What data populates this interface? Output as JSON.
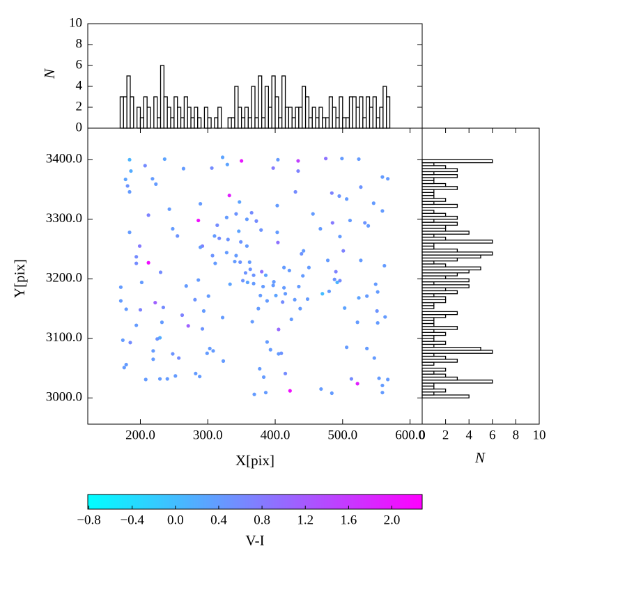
{
  "chart_data": [
    {
      "type": "scatter",
      "xlabel": "X[pix]",
      "ylabel": "Y[pix]",
      "x": [
        184,
        236,
        322,
        350,
        404,
        434,
        475,
        499,
        524,
        207,
        186,
        264,
        306,
        329,
        397,
        434,
        178,
        218,
        559,
        567,
        181,
        223,
        184,
        332,
        430,
        484,
        495,
        506,
        527,
        243,
        289,
        347,
        212,
        365,
        342,
        403,
        456,
        546,
        559,
        286,
        328,
        358,
        372,
        485,
        511,
        533,
        538,
        248,
        314,
        379,
        467,
        184,
        255,
        310,
        346,
        403,
        317,
        330,
        404,
        496,
        292,
        289,
        349,
        358,
        199,
        442,
        439,
        328,
        501,
        342,
        194,
        307,
        212,
        194,
        311,
        340,
        348,
        362,
        478,
        527,
        562,
        230,
        380,
        413,
        421,
        450,
        363,
        356,
        490,
        441,
        386,
        368,
        352,
        359,
        398,
        488,
        492,
        496,
        202,
        286,
        171,
        268,
        333,
        368,
        382,
        397,
        413,
        435,
        549,
        470,
        480,
        552,
        378,
        401,
        415,
        301,
        524,
        536,
        171,
        281,
        388,
        411,
        429,
        448,
        234,
        179,
        200,
        294,
        375,
        437,
        503,
        551,
        262,
        222,
        322,
        424,
        563,
        232,
        366,
        522,
        552,
        194,
        271,
        292,
        405,
        174,
        229,
        225,
        185,
        388,
        506,
        303,
        308,
        393,
        219,
        536,
        299,
        248,
        405,
        409,
        547,
        257,
        219,
        323,
        179,
        176,
        377,
        282,
        288,
        252,
        415,
        383,
        229,
        240,
        208,
        513,
        554,
        567,
        522,
        559,
        468,
        422,
        386,
        369,
        484,
        559
      ],
      "y": [
        3400,
        3401,
        3404,
        3398,
        3400,
        3398,
        3402,
        3402,
        3401,
        3390,
        3381,
        3385,
        3386,
        3392,
        3386,
        3381,
        3367,
        3368,
        3371,
        3368,
        3356,
        3359,
        3346,
        3340,
        3346,
        3344,
        3339,
        3334,
        3354,
        3317,
        3326,
        3329,
        3307,
        3311,
        3309,
        3323,
        3309,
        3327,
        3314,
        3298,
        3303,
        3300,
        3297,
        3294,
        3298,
        3294,
        3289,
        3284,
        3290,
        3282,
        3284,
        3278,
        3272,
        3272,
        3280,
        3278,
        3268,
        3266,
        3261,
        3271,
        3255,
        3253,
        3262,
        3255,
        3255,
        3247,
        3242,
        3244,
        3247,
        3239,
        3237,
        3239,
        3227,
        3226,
        3226,
        3229,
        3228,
        3228,
        3231,
        3231,
        3222,
        3211,
        3212,
        3219,
        3214,
        3219,
        3216,
        3210,
        3212,
        3205,
        3206,
        3206,
        3197,
        3194,
        3195,
        3199,
        3194,
        3197,
        3194,
        3198,
        3186,
        3188,
        3191,
        3192,
        3187,
        3189,
        3185,
        3187,
        3191,
        3175,
        3179,
        3178,
        3172,
        3172,
        3175,
        3171,
        3168,
        3171,
        3163,
        3165,
        3163,
        3161,
        3165,
        3166,
        3152,
        3149,
        3148,
        3146,
        3150,
        3150,
        3151,
        3146,
        3139,
        3160,
        3135,
        3132,
        3136,
        3127,
        3128,
        3127,
        3126,
        3122,
        3121,
        3116,
        3115,
        3097,
        3101,
        3099,
        3093,
        3094,
        3085,
        3083,
        3079,
        3081,
        3079,
        3083,
        3075,
        3074,
        3074,
        3075,
        3067,
        3067,
        3065,
        3062,
        3056,
        3051,
        3049,
        3041,
        3036,
        3037,
        3041,
        3035,
        3032,
        3032,
        3031,
        3032,
        3033,
        3031,
        3024,
        3021,
        3015,
        3012,
        3009,
        3006,
        3008,
        3009
      ],
      "c": [
        0.1,
        0.3,
        0.3,
        2.0,
        0.4,
        1.5,
        0.9,
        0.4,
        0.4,
        0.6,
        0.2,
        0.4,
        0.6,
        0.3,
        0.8,
        0.7,
        0.3,
        0.4,
        0.4,
        0.4,
        0.5,
        0.4,
        0.4,
        1.9,
        0.6,
        0.7,
        0.5,
        0.4,
        0.5,
        0.4,
        0.4,
        0.3,
        0.7,
        0.6,
        0.5,
        0.4,
        0.4,
        0.4,
        0.4,
        2.1,
        0.4,
        0.4,
        0.6,
        0.8,
        0.4,
        0.5,
        0.4,
        0.4,
        0.6,
        0.5,
        0.4,
        0.4,
        0.5,
        0.4,
        0.3,
        0.4,
        0.6,
        0.5,
        0.9,
        0.4,
        0.7,
        0.4,
        0.5,
        0.4,
        0.8,
        0.4,
        0.5,
        0.4,
        0.7,
        0.4,
        0.6,
        0.5,
        2.1,
        0.6,
        0.4,
        0.4,
        0.5,
        0.4,
        0.4,
        0.4,
        0.4,
        0.6,
        0.9,
        0.4,
        0.4,
        0.4,
        0.5,
        0.5,
        0.7,
        0.4,
        0.3,
        0.5,
        0.5,
        0.3,
        0.4,
        0.5,
        0.1,
        0.6,
        0.4,
        0.4,
        0.4,
        0.4,
        0.3,
        0.4,
        0.4,
        0.4,
        0.4,
        0.4,
        0.4,
        0.0,
        0.4,
        0.4,
        0.4,
        0.3,
        0.4,
        0.4,
        0.3,
        0.4,
        0.4,
        0.5,
        0.4,
        0.6,
        0.4,
        0.4,
        0.6,
        0.4,
        0.7,
        0.4,
        0.4,
        0.4,
        0.3,
        0.5,
        0.7,
        1.1,
        0.4,
        0.4,
        0.4,
        0.4,
        0.4,
        0.4,
        0.4,
        0.4,
        1.1,
        0.5,
        1.0,
        0.4,
        0.2,
        0.5,
        0.6,
        0.4,
        0.4,
        0.4,
        0.4,
        0.4,
        0.4,
        0.4,
        0.4,
        0.5,
        0.4,
        0.5,
        0.4,
        0.6,
        0.4,
        0.4,
        0.4,
        0.4,
        0.4,
        0.4,
        0.4,
        0.4,
        0.6,
        0.4,
        0.4,
        0.4,
        0.4,
        0.6,
        0.4,
        0.4,
        1.9,
        0.4,
        0.4,
        2.1,
        0.4,
        0.4,
        0.4,
        0.4
      ],
      "xlim": [
        122,
        618
      ],
      "ylim": [
        2956,
        3453
      ],
      "xticks": [
        {
          "value": 200,
          "label": "200.0"
        },
        {
          "value": 300,
          "label": "300.0"
        },
        {
          "value": 400,
          "label": "400.0"
        },
        {
          "value": 500,
          "label": "500.0"
        },
        {
          "value": 600,
          "label": "600.0"
        }
      ],
      "yticks": [
        {
          "value": 3000,
          "label": "3000.0"
        },
        {
          "value": 3100,
          "label": "3100.0"
        },
        {
          "value": 3200,
          "label": "3200.0"
        },
        {
          "value": 3300,
          "label": "3300.0"
        },
        {
          "value": 3400,
          "label": "3400.0"
        }
      ],
      "colorbar": {
        "label": "V-I",
        "colormap": [
          "#00ffff",
          "#ff00ff"
        ],
        "clim": [
          -0.81,
          2.28
        ],
        "ticks": [
          {
            "value": -0.8,
            "label": "−0.8"
          },
          {
            "value": -0.4,
            "label": "−0.4"
          },
          {
            "value": 0,
            "label": "0.0"
          },
          0.4,
          0.8,
          1.2,
          1.6,
          {
            "value": 2,
            "label": "2.0"
          }
        ]
      }
    },
    {
      "type": "histogram",
      "orientation": "vertical",
      "ylabel": "N",
      "color": "#000000",
      "bins": [
        170,
        175,
        180,
        185,
        190,
        195,
        200,
        205,
        210,
        215,
        220,
        225,
        230,
        235,
        240,
        245,
        250,
        255,
        260,
        265,
        270,
        275,
        280,
        285,
        290,
        295,
        300,
        305,
        310,
        315,
        320,
        325,
        330,
        335,
        340,
        345,
        350,
        355,
        360,
        365,
        370,
        375,
        380,
        385,
        390,
        395,
        400,
        405,
        410,
        415,
        420,
        425,
        430,
        435,
        440,
        445,
        450,
        455,
        460,
        465,
        470,
        475,
        480,
        485,
        490,
        495,
        500,
        505,
        510,
        515,
        520,
        525,
        530,
        535,
        540,
        545,
        550,
        555,
        560,
        565,
        570
      ],
      "counts": [
        3,
        3,
        5,
        3,
        0,
        2,
        1,
        3,
        2,
        0,
        3,
        1,
        6,
        3,
        2,
        1,
        3,
        2,
        1,
        3,
        2,
        1,
        2,
        1,
        0,
        2,
        1,
        0,
        1,
        2,
        0,
        0,
        1,
        1,
        4,
        2,
        1,
        2,
        1,
        4,
        1,
        5,
        1,
        4,
        2,
        5,
        3,
        1,
        5,
        2,
        2,
        1,
        2,
        2,
        4,
        3,
        1,
        2,
        1,
        2,
        1,
        1,
        3,
        2,
        1,
        3,
        1,
        1,
        3,
        3,
        2,
        3,
        1,
        3,
        2,
        3,
        1,
        2,
        4,
        3
      ],
      "xlim": [
        122,
        618
      ],
      "ylim": [
        0,
        10
      ],
      "yticks": [
        0,
        2,
        4,
        6,
        8,
        10
      ]
    },
    {
      "type": "histogram",
      "orientation": "horizontal",
      "xlabel": "N",
      "color": "#000000",
      "bins": [
        3000,
        3005,
        3010,
        3015,
        3020,
        3025,
        3030,
        3035,
        3040,
        3045,
        3050,
        3055,
        3060,
        3065,
        3070,
        3075,
        3080,
        3085,
        3090,
        3095,
        3100,
        3105,
        3110,
        3115,
        3120,
        3125,
        3130,
        3135,
        3140,
        3145,
        3150,
        3155,
        3160,
        3165,
        3170,
        3175,
        3180,
        3185,
        3190,
        3195,
        3200,
        3205,
        3210,
        3215,
        3220,
        3225,
        3230,
        3235,
        3240,
        3245,
        3250,
        3255,
        3260,
        3265,
        3270,
        3275,
        3280,
        3285,
        3290,
        3295,
        3300,
        3305,
        3310,
        3315,
        3320,
        3325,
        3330,
        3335,
        3340,
        3345,
        3350,
        3355,
        3360,
        3365,
        3370,
        3375,
        3380,
        3385,
        3390,
        3395,
        3400
      ],
      "counts": [
        4,
        1,
        2,
        1,
        1,
        6,
        3,
        2,
        1,
        2,
        0,
        1,
        3,
        2,
        1,
        6,
        5,
        1,
        2,
        1,
        1,
        2,
        1,
        3,
        1,
        1,
        1,
        2,
        3,
        0,
        1,
        1,
        2,
        2,
        1,
        3,
        2,
        4,
        1,
        4,
        2,
        3,
        4,
        5,
        2,
        1,
        3,
        5,
        6,
        3,
        1,
        1,
        6,
        2,
        1,
        4,
        2,
        2,
        3,
        1,
        3,
        2,
        1,
        0,
        3,
        1,
        2,
        1,
        1,
        1,
        3,
        2,
        1,
        1,
        3,
        1,
        3,
        2,
        1,
        6
      ],
      "ylim": [
        2956,
        3453
      ],
      "xlim": [
        0,
        10
      ],
      "xticks": [
        0,
        2,
        4,
        6,
        8,
        10
      ]
    }
  ]
}
